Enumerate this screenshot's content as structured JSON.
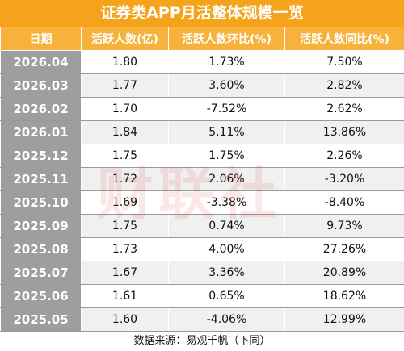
{
  "title": "证券类APP月活整体规模一览",
  "table": {
    "header": [
      "日期",
      "活跃人数(亿)",
      "活跃人数环比(%)",
      "活跃人数同比(%)"
    ],
    "rows": [
      [
        "2026.04",
        "1.80",
        "1.73%",
        "7.50%"
      ],
      [
        "2026.03",
        "1.77",
        "3.60%",
        "2.82%"
      ],
      [
        "2026.02",
        "1.70",
        "-7.52%",
        "2.62%"
      ],
      [
        "2026.01",
        "1.84",
        "5.11%",
        "13.86%"
      ],
      [
        "2025.12",
        "1.75",
        "1.75%",
        "2.26%"
      ],
      [
        "2025.11",
        "1.72",
        "2.06%",
        "-3.20%"
      ],
      [
        "2025.10",
        "1.69",
        "-3.38%",
        "-8.40%"
      ],
      [
        "2025.09",
        "1.75",
        "0.74%",
        "9.73%"
      ],
      [
        "2025.08",
        "1.73",
        "4.00%",
        "27.26%"
      ],
      [
        "2025.07",
        "1.67",
        "3.36%",
        "20.89%"
      ],
      [
        "2025.06",
        "1.61",
        "0.65%",
        "18.62%"
      ],
      [
        "2025.05",
        "1.60",
        "-4.06%",
        "12.99%"
      ]
    ]
  },
  "source": "数据来源：易观千帆（下同）",
  "watermark": "财联社"
}
